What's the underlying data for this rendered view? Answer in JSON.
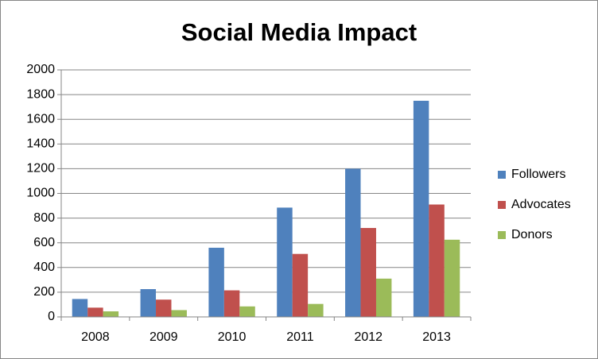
{
  "chart_data": {
    "type": "bar",
    "title": "Social Media Impact",
    "categories": [
      "2008",
      "2009",
      "2010",
      "2011",
      "2012",
      "2013"
    ],
    "series": [
      {
        "name": "Followers",
        "color": "#4f81bd",
        "values": [
          145,
          225,
          560,
          885,
          1200,
          1750
        ]
      },
      {
        "name": "Advocates",
        "color": "#c0504d",
        "values": [
          75,
          140,
          215,
          510,
          720,
          910
        ]
      },
      {
        "name": "Donors",
        "color": "#9bbb59",
        "values": [
          45,
          55,
          85,
          105,
          310,
          625
        ]
      }
    ],
    "ylim": [
      0,
      2000
    ],
    "yticks": [
      0,
      200,
      400,
      600,
      800,
      1000,
      1200,
      1400,
      1600,
      1800,
      2000
    ],
    "grid": true,
    "legend": "right"
  }
}
